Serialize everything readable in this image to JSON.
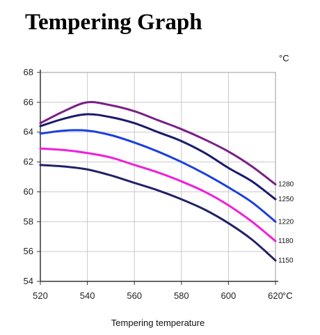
{
  "chart_data": {
    "type": "line",
    "title": "Tempering Graph",
    "xlabel": "Tempering temperature",
    "ylabel": "",
    "x_unit": "°C",
    "y_unit": "°C",
    "xlim": [
      520,
      620
    ],
    "ylim": [
      54,
      68
    ],
    "x_ticks": [
      520,
      540,
      560,
      580,
      600,
      620
    ],
    "y_ticks": [
      54,
      56,
      58,
      60,
      62,
      64,
      66,
      68
    ],
    "grid": true,
    "x": [
      520,
      530,
      540,
      550,
      560,
      570,
      580,
      590,
      600,
      610,
      620
    ],
    "series": [
      {
        "name": "1280",
        "color": "#7a1f86",
        "values": [
          64.6,
          65.4,
          66.0,
          65.8,
          65.4,
          64.8,
          64.2,
          63.5,
          62.7,
          61.7,
          60.5
        ]
      },
      {
        "name": "1250",
        "color": "#1a1a6e",
        "values": [
          64.4,
          64.9,
          65.2,
          65.0,
          64.6,
          64.0,
          63.4,
          62.6,
          61.6,
          60.7,
          59.5
        ]
      },
      {
        "name": "1220",
        "color": "#1a3fe0",
        "values": [
          63.9,
          64.1,
          64.1,
          63.8,
          63.3,
          62.7,
          62.0,
          61.2,
          60.3,
          59.3,
          58.0
        ]
      },
      {
        "name": "1180",
        "color": "#f01fd8",
        "values": [
          62.9,
          62.8,
          62.6,
          62.3,
          61.8,
          61.3,
          60.7,
          60.0,
          59.1,
          58.0,
          56.7
        ]
      },
      {
        "name": "1150",
        "color": "#222266",
        "values": [
          61.8,
          61.7,
          61.5,
          61.1,
          60.6,
          60.1,
          59.5,
          58.8,
          57.9,
          56.8,
          55.4
        ]
      }
    ]
  }
}
